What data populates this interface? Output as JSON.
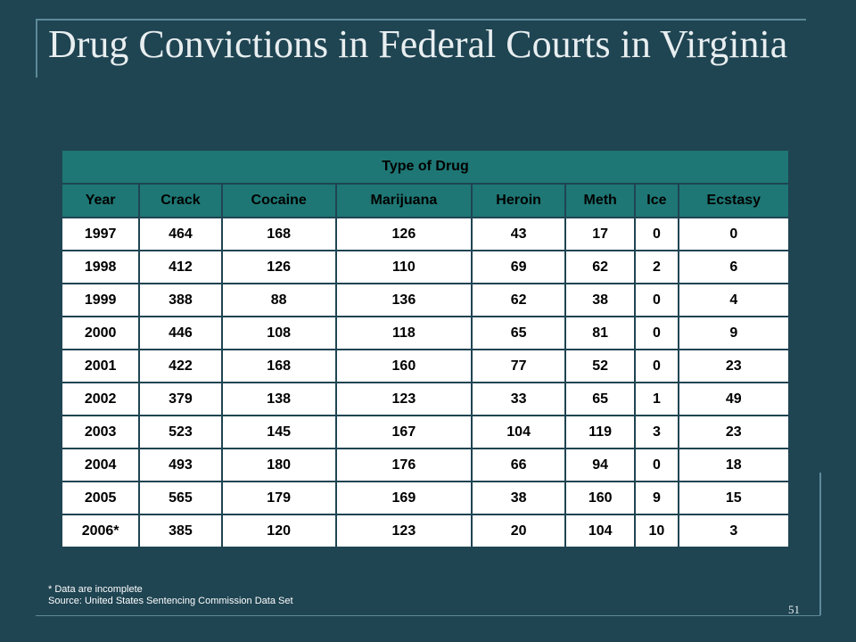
{
  "slide": {
    "title": "Drug Convictions in Federal Courts in Virginia",
    "footnote": "* Data are incomplete",
    "source": "Source:  United States Sentencing Commission Data Set",
    "page_number": "51"
  },
  "table": {
    "group_header": "Type of Drug",
    "columns": [
      "Year",
      "Crack",
      "Cocaine",
      "Marijuana",
      "Heroin",
      "Meth",
      "Ice",
      "Ecstasy"
    ],
    "rows": [
      [
        "1997",
        "464",
        "168",
        "126",
        "43",
        "17",
        "0",
        "0"
      ],
      [
        "1998",
        "412",
        "126",
        "110",
        "69",
        "62",
        "2",
        "6"
      ],
      [
        "1999",
        "388",
        "88",
        "136",
        "62",
        "38",
        "0",
        "4"
      ],
      [
        "2000",
        "446",
        "108",
        "118",
        "65",
        "81",
        "0",
        "9"
      ],
      [
        "2001",
        "422",
        "168",
        "160",
        "77",
        "52",
        "0",
        "23"
      ],
      [
        "2002",
        "379",
        "138",
        "123",
        "33",
        "65",
        "1",
        "49"
      ],
      [
        "2003",
        "523",
        "145",
        "167",
        "104",
        "119",
        "3",
        "23"
      ],
      [
        "2004",
        "493",
        "180",
        "176",
        "66",
        "94",
        "0",
        "18"
      ],
      [
        "2005",
        "565",
        "179",
        "169",
        "38",
        "160",
        "9",
        "15"
      ],
      [
        "2006*",
        "385",
        "120",
        "123",
        "20",
        "104",
        "10",
        "3"
      ]
    ]
  },
  "colors": {
    "background": "#1f4452",
    "header_fill": "#1e7774",
    "rule": "#5d8a98"
  }
}
